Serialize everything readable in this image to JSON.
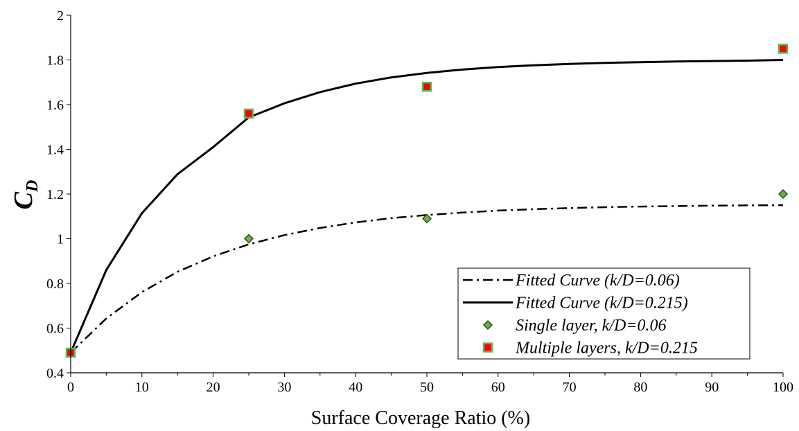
{
  "chart_data": {
    "type": "scatter",
    "title": "",
    "xlabel": "Surface Coverage Ratio (%)",
    "ylabel": {
      "main": "C",
      "sub": "D"
    },
    "xlim": [
      0,
      100
    ],
    "ylim": [
      0.4,
      2
    ],
    "x_ticks": [
      0,
      10,
      20,
      30,
      40,
      50,
      60,
      70,
      80,
      90,
      100
    ],
    "y_ticks": [
      0.4,
      0.6,
      0.8,
      1,
      1.2,
      1.4,
      1.6,
      1.8,
      2
    ],
    "x_tick_labels": [
      "0",
      "10",
      "20",
      "30",
      "40",
      "50",
      "60",
      "70",
      "80",
      "90",
      "100"
    ],
    "y_tick_labels": [
      "0.4",
      "0.6",
      "0.8",
      "1",
      "1.2",
      "1.4",
      "1.6",
      "1.8",
      "2"
    ],
    "grid": false,
    "legend_position": "bottom-right",
    "series": [
      {
        "name": "Fitted Curve (k/D=0.06)",
        "kind": "line",
        "style": "dash-dot",
        "color": "#000000",
        "x": [
          0,
          5,
          10,
          15,
          20,
          25,
          30,
          35,
          40,
          45,
          50,
          55,
          60,
          65,
          70,
          75,
          80,
          85,
          90,
          95,
          100
        ],
        "y": [
          0.49,
          0.643,
          0.761,
          0.852,
          0.921,
          0.975,
          1.016,
          1.048,
          1.073,
          1.092,
          1.106,
          1.117,
          1.126,
          1.132,
          1.137,
          1.141,
          1.144,
          1.146,
          1.148,
          1.149,
          1.15
        ]
      },
      {
        "name": "Fitted Curve (k/D=0.215)",
        "kind": "line",
        "style": "solid",
        "color": "#000000",
        "x": [
          0,
          5,
          10,
          15,
          20,
          25,
          30,
          35,
          40,
          45,
          50,
          55,
          60,
          65,
          70,
          75,
          80,
          85,
          90,
          95,
          100
        ],
        "y": [
          0.49,
          0.86,
          1.114,
          1.289,
          1.41,
          1.543,
          1.606,
          1.656,
          1.694,
          1.722,
          1.742,
          1.757,
          1.768,
          1.776,
          1.782,
          1.787,
          1.79,
          1.793,
          1.795,
          1.797,
          1.8
        ]
      },
      {
        "name": "Single layer, k/D=0.06",
        "kind": "marker",
        "marker": "diamond",
        "fill": "#70ad47",
        "stroke": "#2f4f1f",
        "x": [
          25,
          50,
          100
        ],
        "y": [
          1.0,
          1.09,
          1.2
        ]
      },
      {
        "name": "Multiple layers, k/D=0.215",
        "kind": "marker",
        "marker": "square",
        "fill": "#ff0000",
        "stroke": "#5cb85c",
        "x": [
          0,
          25,
          50,
          100
        ],
        "y": [
          0.49,
          1.56,
          1.68,
          1.85
        ]
      }
    ]
  }
}
